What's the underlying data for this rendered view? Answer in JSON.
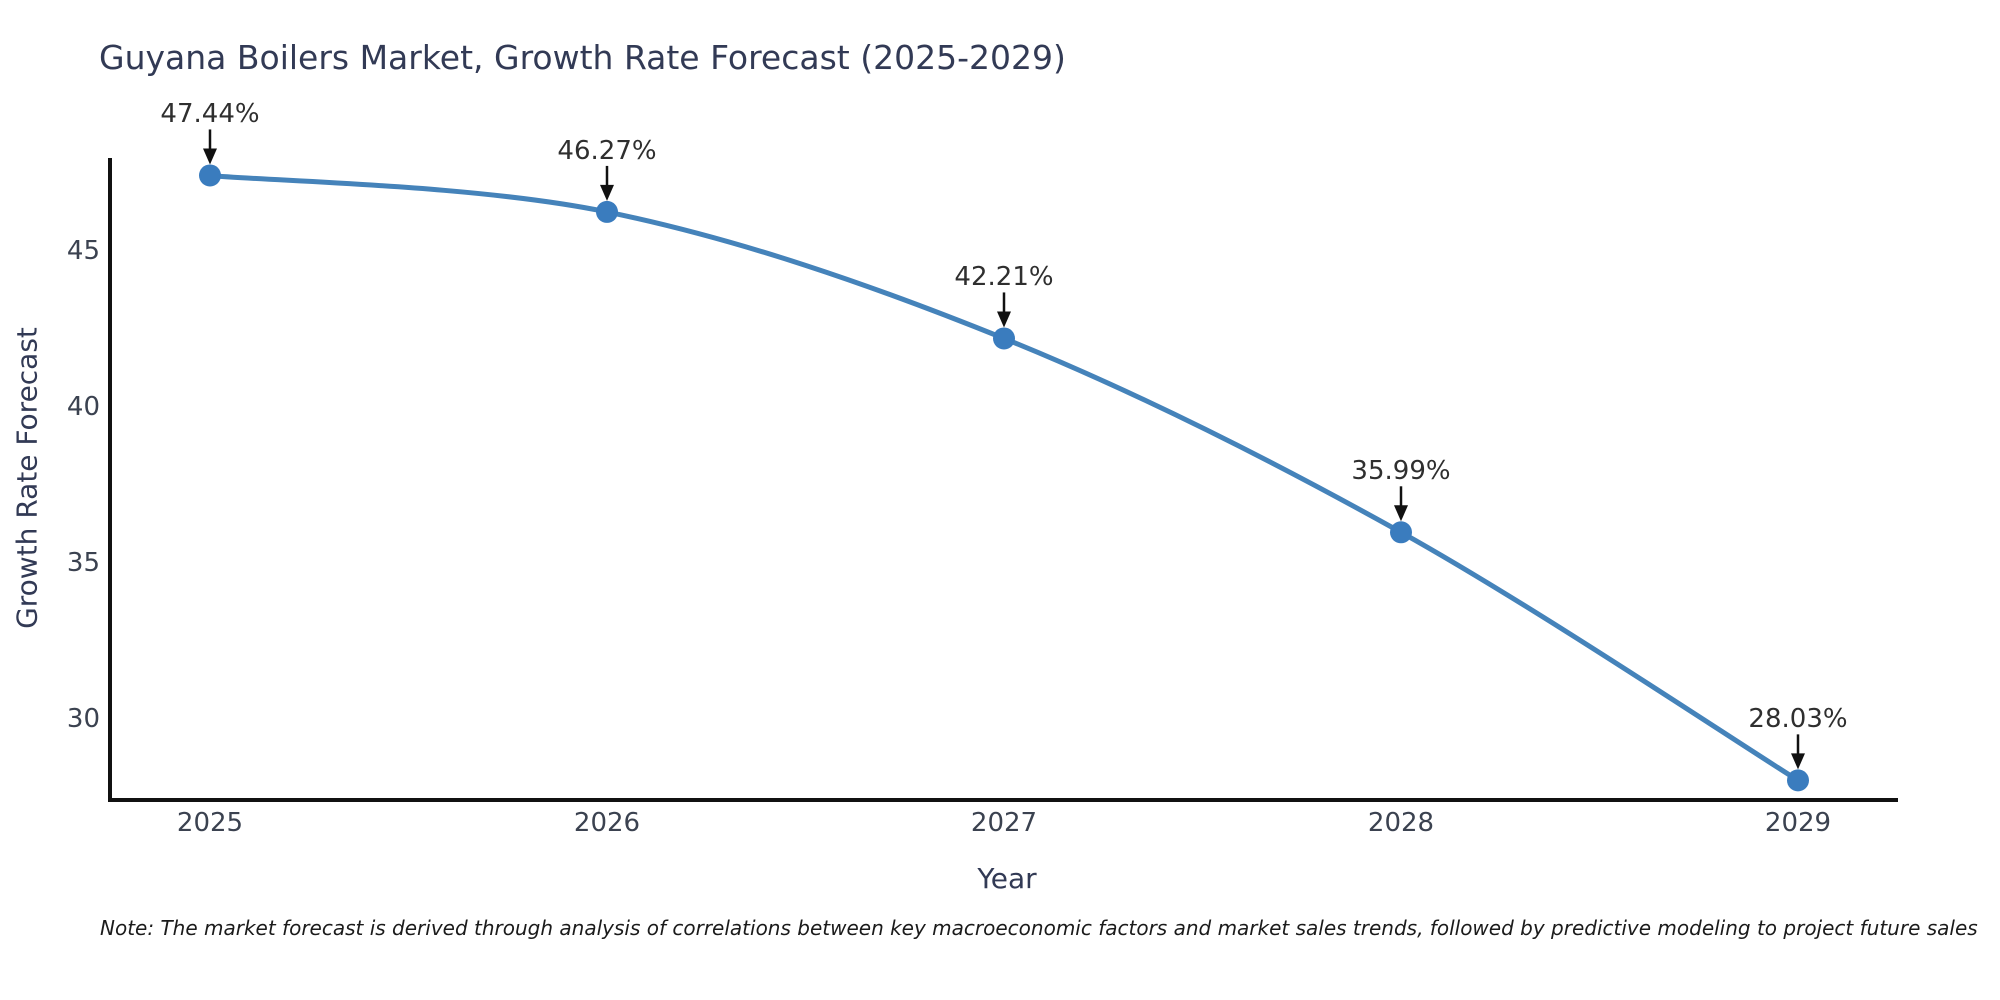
{
  "page": {
    "background_color": "#ffffff"
  },
  "chart_data": {
    "type": "line",
    "title": "Guyana Boilers Market, Growth Rate Forecast (2025-2029)",
    "xlabel": "Year",
    "ylabel": "Growth Rate Forecast",
    "categories": [
      "2025",
      "2026",
      "2027",
      "2028",
      "2029"
    ],
    "values": [
      47.44,
      46.27,
      42.21,
      35.99,
      28.03
    ],
    "point_labels": [
      "47.44%",
      "46.27%",
      "42.21%",
      "35.99%",
      "28.03%"
    ],
    "y_ticks": [
      30,
      35,
      40,
      45
    ],
    "ylim": [
      27.4,
      48.0
    ],
    "grid": false,
    "legend": "none",
    "smooth_curve": true,
    "line_color": "#4583ba",
    "marker_color": "#3a7cbe",
    "spine_color": "#111111",
    "annotation_arrow_color": "#111111",
    "title_color": "#323a55",
    "tick_label_color": "#3b4250",
    "note": "Note: The market forecast is derived through analysis of correlations between key macroeconomic factors and market sales trends, followed by predictive modeling to project future sales"
  }
}
